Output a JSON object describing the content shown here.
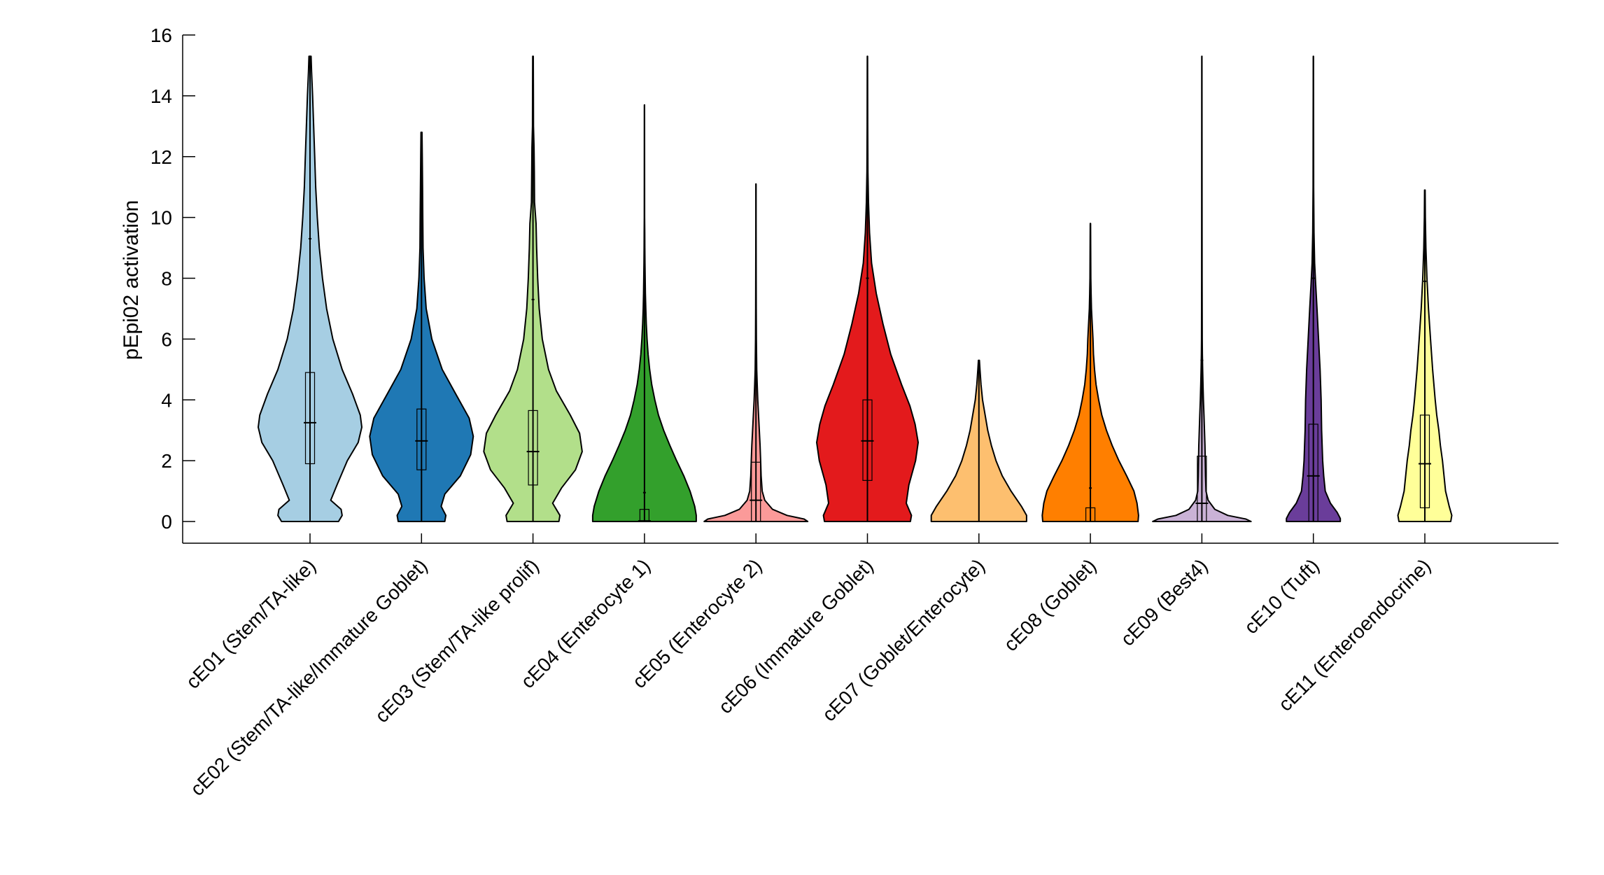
{
  "chart_data": {
    "type": "violin",
    "ylabel": "pEpi02 activation",
    "xlabel": "",
    "ylim": [
      -0.7,
      16
    ],
    "yticks": [
      0,
      2,
      4,
      6,
      8,
      10,
      12,
      14,
      16
    ],
    "legend": "none",
    "grid": false,
    "categories": [
      {
        "label": "cE01 (Stem/TA-like)",
        "color": "#a6cee3",
        "min": 0,
        "max": 15.3,
        "q1": 1.9,
        "median": 3.25,
        "q3": 4.9,
        "whisker_high": 9.3,
        "density": [
          [
            0,
            0.55
          ],
          [
            0.2,
            0.62
          ],
          [
            0.4,
            0.6
          ],
          [
            0.7,
            0.4
          ],
          [
            1.2,
            0.52
          ],
          [
            2,
            0.72
          ],
          [
            2.6,
            0.93
          ],
          [
            3.1,
            1.0
          ],
          [
            3.5,
            0.97
          ],
          [
            4.2,
            0.82
          ],
          [
            5,
            0.62
          ],
          [
            6,
            0.44
          ],
          [
            7,
            0.32
          ],
          [
            8,
            0.24
          ],
          [
            9,
            0.18
          ],
          [
            10,
            0.14
          ],
          [
            11,
            0.11
          ],
          [
            12,
            0.09
          ],
          [
            13,
            0.07
          ],
          [
            14,
            0.05
          ],
          [
            14.8,
            0.03
          ],
          [
            15.3,
            0.02
          ]
        ]
      },
      {
        "label": "cE02 (Stem/TA-like/Immature Goblet)",
        "color": "#1f78b4",
        "min": 0,
        "max": 12.8,
        "q1": 1.7,
        "median": 2.65,
        "q3": 3.7,
        "whisker_high": 10.5,
        "density": [
          [
            0,
            0.45
          ],
          [
            0.2,
            0.47
          ],
          [
            0.5,
            0.38
          ],
          [
            0.9,
            0.45
          ],
          [
            1.5,
            0.75
          ],
          [
            2.2,
            0.95
          ],
          [
            2.8,
            1.0
          ],
          [
            3.4,
            0.92
          ],
          [
            4.2,
            0.66
          ],
          [
            5,
            0.4
          ],
          [
            6,
            0.2
          ],
          [
            7,
            0.09
          ],
          [
            8,
            0.05
          ],
          [
            9,
            0.03
          ],
          [
            10,
            0.025
          ],
          [
            11,
            0.02
          ],
          [
            12,
            0.015
          ],
          [
            12.8,
            0.01
          ]
        ]
      },
      {
        "label": "cE03 (Stem/TA-like prolif)",
        "color": "#b2df8a",
        "min": 0,
        "max": 15.3,
        "q1": 1.2,
        "median": 2.3,
        "q3": 3.65,
        "whisker_high": 7.3,
        "density": [
          [
            0,
            0.5
          ],
          [
            0.2,
            0.52
          ],
          [
            0.6,
            0.38
          ],
          [
            1.1,
            0.55
          ],
          [
            1.7,
            0.82
          ],
          [
            2.3,
            0.95
          ],
          [
            2.9,
            0.9
          ],
          [
            3.5,
            0.72
          ],
          [
            4.3,
            0.45
          ],
          [
            5,
            0.3
          ],
          [
            6,
            0.18
          ],
          [
            7,
            0.12
          ],
          [
            8,
            0.09
          ],
          [
            9,
            0.07
          ],
          [
            9.8,
            0.06
          ],
          [
            10.5,
            0.03
          ],
          [
            11.5,
            0.025
          ],
          [
            12.3,
            0.02
          ],
          [
            13,
            0.01
          ],
          [
            14,
            0.008
          ],
          [
            15.3,
            0.005
          ]
        ]
      },
      {
        "label": "cE04 (Enterocyte 1)",
        "color": "#33a02c",
        "min": 0,
        "max": 13.7,
        "q1": 0,
        "median": 0.02,
        "q3": 0.4,
        "whisker_high": 0.95,
        "density": [
          [
            0,
            1.0
          ],
          [
            0.2,
            1.0
          ],
          [
            0.5,
            0.97
          ],
          [
            1,
            0.88
          ],
          [
            1.5,
            0.76
          ],
          [
            2,
            0.62
          ],
          [
            2.5,
            0.49
          ],
          [
            3,
            0.37
          ],
          [
            3.5,
            0.27
          ],
          [
            4,
            0.2
          ],
          [
            4.5,
            0.14
          ],
          [
            5,
            0.1
          ],
          [
            5.5,
            0.07
          ],
          [
            6,
            0.05
          ],
          [
            6.5,
            0.035
          ],
          [
            7,
            0.025
          ],
          [
            7.5,
            0.018
          ],
          [
            8,
            0.013
          ],
          [
            8.5,
            0.01
          ],
          [
            9,
            0.007
          ],
          [
            9.5,
            0.005
          ],
          [
            10,
            0.003
          ],
          [
            13.7,
            0.002
          ]
        ]
      },
      {
        "label": "cE05 (Enterocyte 2)",
        "color": "#fb9a99",
        "min": 0,
        "max": 11.1,
        "q1": 0,
        "median": 0.7,
        "q3": 1.95,
        "whisker_high": 4.8,
        "density": [
          [
            0,
            1.0
          ],
          [
            0.08,
            0.93
          ],
          [
            0.2,
            0.6
          ],
          [
            0.4,
            0.32
          ],
          [
            0.7,
            0.17
          ],
          [
            1,
            0.12
          ],
          [
            1.5,
            0.1
          ],
          [
            2,
            0.09
          ],
          [
            2.5,
            0.08
          ],
          [
            3,
            0.065
          ],
          [
            3.5,
            0.05
          ],
          [
            4,
            0.035
          ],
          [
            4.5,
            0.025
          ],
          [
            5,
            0.015
          ],
          [
            6,
            0.008
          ],
          [
            7,
            0.005
          ],
          [
            8,
            0.004
          ],
          [
            9,
            0.003
          ],
          [
            10,
            0.002
          ],
          [
            11.1,
            0.001
          ]
        ]
      },
      {
        "label": "cE06 (Immature Goblet)",
        "color": "#e31a1c",
        "min": 0,
        "max": 15.3,
        "q1": 1.35,
        "median": 2.65,
        "q3": 4.0,
        "whisker_high": 8.0,
        "density": [
          [
            0,
            0.83
          ],
          [
            0.2,
            0.85
          ],
          [
            0.6,
            0.75
          ],
          [
            1.2,
            0.8
          ],
          [
            2,
            0.93
          ],
          [
            2.6,
            0.98
          ],
          [
            3.2,
            0.92
          ],
          [
            3.8,
            0.82
          ],
          [
            4.5,
            0.66
          ],
          [
            5.5,
            0.45
          ],
          [
            6.5,
            0.3
          ],
          [
            7.5,
            0.17
          ],
          [
            8.5,
            0.08
          ],
          [
            9.5,
            0.04
          ],
          [
            10.5,
            0.02
          ],
          [
            11.5,
            0.01
          ],
          [
            13,
            0.005
          ],
          [
            15.3,
            0.003
          ]
        ]
      },
      {
        "label": "cE07 (Goblet/Enterocyte)",
        "color": "#fdbf6f",
        "min": 0,
        "max": 5.3,
        "q1": 0,
        "median": 0,
        "q3": 0,
        "whisker_high": 0,
        "density": [
          [
            0,
            0.92
          ],
          [
            0.2,
            0.92
          ],
          [
            0.5,
            0.82
          ],
          [
            1,
            0.62
          ],
          [
            1.5,
            0.45
          ],
          [
            2,
            0.33
          ],
          [
            2.5,
            0.24
          ],
          [
            3,
            0.17
          ],
          [
            3.5,
            0.12
          ],
          [
            4,
            0.07
          ],
          [
            4.5,
            0.04
          ],
          [
            5,
            0.02
          ],
          [
            5.3,
            0.01
          ]
        ]
      },
      {
        "label": "cE08 (Goblet)",
        "color": "#ff7f00",
        "min": 0,
        "max": 9.8,
        "q1": 0,
        "median": 0,
        "q3": 0.45,
        "whisker_high": 1.1,
        "density": [
          [
            0,
            0.92
          ],
          [
            0.2,
            0.93
          ],
          [
            0.6,
            0.9
          ],
          [
            1,
            0.84
          ],
          [
            1.5,
            0.7
          ],
          [
            2,
            0.55
          ],
          [
            2.5,
            0.42
          ],
          [
            3,
            0.31
          ],
          [
            3.5,
            0.22
          ],
          [
            4,
            0.16
          ],
          [
            4.5,
            0.11
          ],
          [
            5,
            0.08
          ],
          [
            5.5,
            0.06
          ],
          [
            6,
            0.05
          ],
          [
            6.5,
            0.035
          ],
          [
            7,
            0.02
          ],
          [
            7.5,
            0.013
          ],
          [
            8,
            0.008
          ],
          [
            9,
            0.005
          ],
          [
            9.8,
            0.003
          ]
        ]
      },
      {
        "label": "cE09 (Best4)",
        "color": "#cab2d6",
        "min": 0,
        "max": 15.3,
        "q1": 0,
        "median": 0.6,
        "q3": 2.15,
        "whisker_high": 5.3,
        "density": [
          [
            0,
            0.95
          ],
          [
            0.08,
            0.85
          ],
          [
            0.2,
            0.5
          ],
          [
            0.4,
            0.25
          ],
          [
            0.7,
            0.12
          ],
          [
            1,
            0.08
          ],
          [
            1.5,
            0.07
          ],
          [
            2,
            0.065
          ],
          [
            2.5,
            0.06
          ],
          [
            3,
            0.05
          ],
          [
            3.5,
            0.04
          ],
          [
            4,
            0.03
          ],
          [
            4.5,
            0.022
          ],
          [
            5,
            0.015
          ],
          [
            5.5,
            0.01
          ],
          [
            6,
            0.007
          ],
          [
            8,
            0.004
          ],
          [
            11,
            0.003
          ],
          [
            15.3,
            0.001
          ]
        ]
      },
      {
        "label": "cE10 (Tuft)",
        "color": "#6a3d9a",
        "min": 0,
        "max": 15.3,
        "q1": 0,
        "median": 1.5,
        "q3": 3.2,
        "whisker_high": 8.0,
        "density": [
          [
            0,
            0.52
          ],
          [
            0.1,
            0.52
          ],
          [
            0.3,
            0.46
          ],
          [
            0.6,
            0.33
          ],
          [
            1,
            0.23
          ],
          [
            1.5,
            0.2
          ],
          [
            2,
            0.18
          ],
          [
            3,
            0.16
          ],
          [
            4,
            0.15
          ],
          [
            5,
            0.13
          ],
          [
            6,
            0.1
          ],
          [
            7,
            0.07
          ],
          [
            7.8,
            0.045
          ],
          [
            8.5,
            0.025
          ],
          [
            9.5,
            0.012
          ],
          [
            11,
            0.006
          ],
          [
            13,
            0.004
          ],
          [
            15.3,
            0.002
          ]
        ]
      },
      {
        "label": "cE11 (Enteroendocrine)",
        "color": "#ffff99",
        "min": 0,
        "max": 10.9,
        "q1": 0.45,
        "median": 1.9,
        "q3": 3.5,
        "whisker_high": 7.9,
        "density": [
          [
            0,
            0.5
          ],
          [
            0.2,
            0.52
          ],
          [
            0.5,
            0.47
          ],
          [
            1,
            0.4
          ],
          [
            1.5,
            0.37
          ],
          [
            2,
            0.34
          ],
          [
            2.5,
            0.3
          ],
          [
            3,
            0.27
          ],
          [
            3.5,
            0.23
          ],
          [
            4,
            0.2
          ],
          [
            5,
            0.15
          ],
          [
            6,
            0.11
          ],
          [
            7,
            0.07
          ],
          [
            8,
            0.04
          ],
          [
            9,
            0.02
          ],
          [
            10,
            0.01
          ],
          [
            10.9,
            0.005
          ]
        ]
      }
    ]
  }
}
